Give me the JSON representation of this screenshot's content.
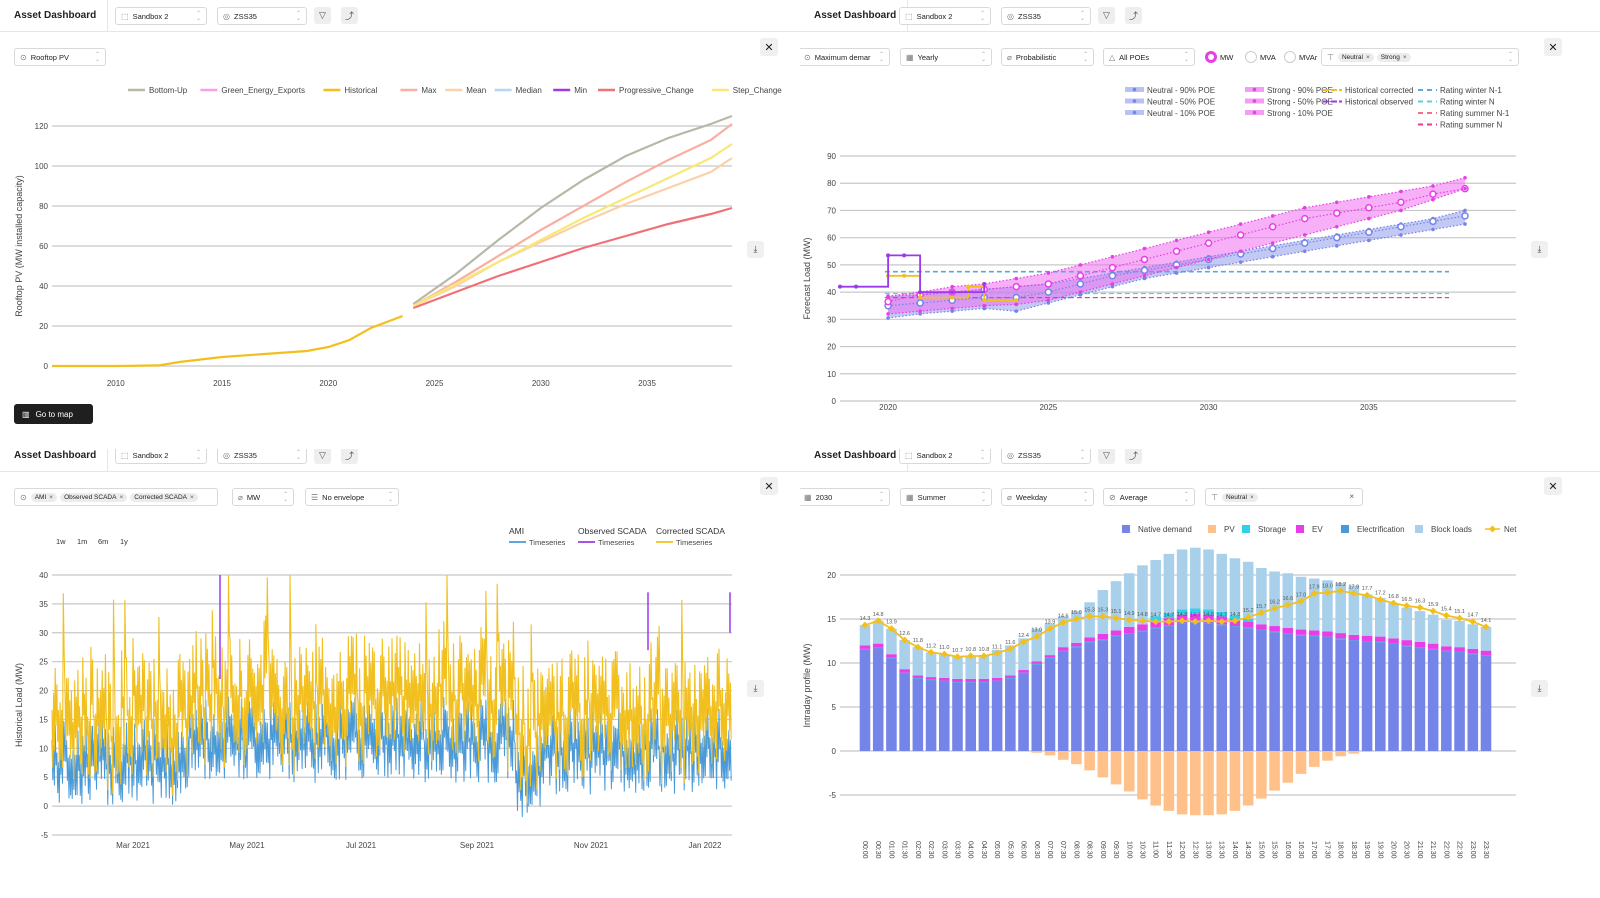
{
  "app_title": "Asset Dashboard",
  "header": {
    "workspace": "Sandbox 2",
    "asset": "ZSS35",
    "filter_icon": "filter-icon",
    "compare_icon": "chart-compare-icon"
  },
  "panel1": {
    "metric_select": "Rooftop PV",
    "go_to_map": "Go to map",
    "close_icon": "close-icon",
    "download_icon": "download-icon"
  },
  "panel2": {
    "controls": {
      "metric": "Maximum demar",
      "period": "Yearly",
      "mode": "Probabilistic",
      "poe": "All POEs",
      "units": [
        {
          "label": "MW",
          "selected": true
        },
        {
          "label": "MVA",
          "selected": false
        },
        {
          "label": "MVAr",
          "selected": false
        }
      ],
      "scenarios": [
        "Neutral",
        "Strong"
      ]
    }
  },
  "panel3": {
    "controls": {
      "sources": [
        "AMI",
        "Observed SCADA",
        "Corrected SCADA"
      ],
      "units": "MW",
      "envelope": "No envelope"
    },
    "ranges": [
      "1w",
      "1m",
      "6m",
      "1y"
    ]
  },
  "panel4": {
    "controls": {
      "year": "2030",
      "season": "Summer",
      "daytype": "Weekday",
      "stat": "Average",
      "scenarios": [
        "Neutral"
      ]
    }
  },
  "colors": {
    "historical": "#f2c01e",
    "accent_magenta": "#e83ee8",
    "native_demand": "#7584e8",
    "pv": "#ffc08a",
    "block_loads": "#a8d0ea"
  },
  "chart_data": [
    {
      "type": "line",
      "title": "Rooftop PV",
      "xlabel": "",
      "ylabel": "Rooftop PV (MW installed capacity)",
      "xlim": [
        2007,
        2039
      ],
      "ylim": [
        0,
        125
      ],
      "yticks": [
        0,
        20,
        40,
        60,
        80,
        100,
        120
      ],
      "xticks": [
        2010,
        2015,
        2020,
        2025,
        2030,
        2035
      ],
      "legend": "top",
      "grid": true,
      "series": [
        {
          "name": "Bottom-Up",
          "color": "#b8b8a8",
          "x": [
            2024,
            2026,
            2028,
            2030,
            2032,
            2034,
            2036,
            2038,
            2039
          ],
          "y": [
            31,
            46,
            63,
            79,
            93,
            105,
            114,
            121,
            125
          ]
        },
        {
          "name": "Green_Energy_Exports",
          "color": "#f7a0e8",
          "x": [],
          "y": []
        },
        {
          "name": "Historical",
          "color": "#f2c01e",
          "x": [
            2007,
            2010,
            2012,
            2013,
            2015,
            2017,
            2019,
            2020,
            2021,
            2022,
            2023,
            2023.5
          ],
          "y": [
            0,
            0,
            0.3,
            2,
            4.5,
            6,
            7.5,
            9.5,
            13,
            19,
            23,
            25
          ]
        },
        {
          "name": "Max",
          "color": "#f9b0a0",
          "x": [
            2024,
            2026,
            2028,
            2030,
            2032,
            2034,
            2036,
            2038,
            2039
          ],
          "y": [
            30,
            42,
            55,
            68,
            80,
            92,
            103,
            113,
            121
          ]
        },
        {
          "name": "Mean",
          "color": "#fcd0a8",
          "x": [
            2024,
            2026,
            2028,
            2030,
            2032,
            2034,
            2036,
            2038,
            2039
          ],
          "y": [
            30,
            40,
            52,
            62,
            72,
            81,
            89,
            97,
            104
          ]
        },
        {
          "name": "Median",
          "color": "#b9d4f5",
          "x": [],
          "y": []
        },
        {
          "name": "Min",
          "color": "#9b3ae8",
          "x": [],
          "y": []
        },
        {
          "name": "Progressive_Change",
          "color": "#f07078",
          "x": [
            2024,
            2026,
            2028,
            2030,
            2032,
            2034,
            2036,
            2038,
            2039
          ],
          "y": [
            29,
            37,
            45,
            52,
            59,
            65,
            71,
            76,
            79
          ]
        },
        {
          "name": "Step_Change",
          "color": "#f8e878",
          "x": [
            2024,
            2026,
            2028,
            2030,
            2032,
            2034,
            2036,
            2038,
            2039
          ],
          "y": [
            30,
            41,
            52,
            63,
            74,
            84,
            94,
            104,
            111
          ]
        }
      ]
    },
    {
      "type": "line",
      "title": "Maximum demand",
      "xlabel": "",
      "ylabel": "Forecast Load (MW)",
      "xlim": [
        2018.5,
        2039
      ],
      "ylim": [
        0,
        95
      ],
      "yticks": [
        0,
        10,
        20,
        30,
        40,
        50,
        60,
        70,
        80,
        90
      ],
      "xticks": [
        2020,
        2025,
        2030,
        2035
      ],
      "legend": "top-right",
      "grid": true,
      "x": [
        2020,
        2021,
        2022,
        2023,
        2024,
        2025,
        2026,
        2027,
        2028,
        2029,
        2030,
        2031,
        2032,
        2033,
        2034,
        2035,
        2036,
        2037,
        2038
      ],
      "series": [
        {
          "name": "Neutral - 90% POE",
          "color": "#7584e8",
          "y": [
            38.5,
            39,
            40,
            41,
            42,
            43,
            45,
            47,
            49,
            51,
            53,
            55,
            57,
            59,
            61,
            63,
            65,
            67,
            70
          ]
        },
        {
          "name": "Neutral - 50% POE",
          "color": "#7584e8",
          "y": [
            35,
            36,
            37,
            38,
            38,
            40,
            43,
            46,
            48,
            50,
            52,
            54,
            56,
            58,
            60,
            62,
            64,
            66,
            68
          ]
        },
        {
          "name": "Neutral - 10% POE",
          "color": "#7584e8",
          "y": [
            30.5,
            32,
            33,
            34,
            33,
            36,
            39,
            42,
            45,
            47,
            49,
            51,
            53,
            55,
            57,
            59,
            61,
            63,
            65
          ]
        },
        {
          "name": "Strong - 90% POE",
          "color": "#e83ee8",
          "y": [
            38.5,
            40,
            42,
            43,
            45,
            47,
            50,
            53,
            56,
            59,
            62,
            65,
            68,
            71,
            73,
            75,
            77,
            79,
            82
          ]
        },
        {
          "name": "Strong - 50% POE",
          "color": "#e83ee8",
          "y": [
            36.5,
            39,
            40,
            41,
            42,
            43,
            46,
            49,
            52,
            55,
            58,
            61,
            64,
            67,
            69,
            71,
            73,
            76,
            78
          ]
        },
        {
          "name": "Strong - 10% POE",
          "color": "#e83ee8",
          "y": [
            32,
            33,
            34,
            35,
            35.5,
            37,
            40,
            43,
            46,
            49,
            52,
            55,
            58,
            61,
            64,
            67,
            70,
            74,
            78
          ]
        },
        {
          "name": "Historical corrected",
          "color": "#f2c01e",
          "x": [
            2020,
            2020.5,
            2021,
            2022,
            2022.5,
            2023,
            2024
          ],
          "y": [
            46,
            46,
            38,
            38,
            42,
            37,
            37
          ]
        },
        {
          "name": "Historical observed",
          "color": "#9b3ae8",
          "x": [
            2018.5,
            2019,
            2020,
            2020.5,
            2021,
            2022,
            2023
          ],
          "y": [
            42,
            42,
            53.5,
            53.5,
            40,
            40,
            43
          ]
        },
        {
          "name": "Rating winter N-1",
          "color": "#5aa8e0",
          "constant": 47.5
        },
        {
          "name": "Rating winter N",
          "color": "#5ad0e0",
          "constant": 39.5
        },
        {
          "name": "Rating summer N-1",
          "color": "#f07090",
          "constant": 38
        },
        {
          "name": "Rating summer N",
          "color": "#e83e8a",
          "constant": 38
        }
      ]
    },
    {
      "type": "line",
      "title": "Historical Load",
      "xlabel": "",
      "ylabel": "Historical Load (MW)",
      "ylim": [
        -5,
        40
      ],
      "yticks": [
        -5,
        0,
        5,
        10,
        15,
        20,
        25,
        30,
        35,
        40
      ],
      "xticks": [
        "Mar 2021",
        "May 2021",
        "Jul 2021",
        "Sep 2021",
        "Nov 2021",
        "Jan 2022"
      ],
      "legend": "top-right",
      "grid": true,
      "series": [
        {
          "name": "AMI Timeseries",
          "color": "#4a9ad8",
          "typical_range": [
            0,
            20
          ]
        },
        {
          "name": "Observed SCADA Timeseries",
          "color": "#9b3ae8",
          "spikes": [
            40,
            37
          ]
        },
        {
          "name": "Corrected SCADA Timeseries",
          "color": "#f2c01e",
          "typical_range": [
            5,
            36
          ]
        }
      ]
    },
    {
      "type": "bar",
      "title": "Intraday profile",
      "xlabel": "",
      "ylabel": "Intraday profile (MW)",
      "ylim": [
        -8,
        22
      ],
      "yticks": [
        -5,
        0,
        5,
        10,
        15,
        20
      ],
      "legend": "top-right",
      "grid": true,
      "categories": [
        "00:00",
        "00:30",
        "01:00",
        "01:30",
        "02:00",
        "02:30",
        "03:00",
        "03:30",
        "04:00",
        "04:30",
        "05:00",
        "05:30",
        "06:00",
        "06:30",
        "07:00",
        "07:30",
        "08:00",
        "08:30",
        "09:00",
        "09:30",
        "10:00",
        "10:30",
        "11:00",
        "11:30",
        "12:00",
        "12:30",
        "13:00",
        "13:30",
        "14:00",
        "14:30",
        "15:00",
        "15:30",
        "16:00",
        "16:30",
        "17:00",
        "17:30",
        "18:00",
        "18:30",
        "19:00",
        "19:30",
        "20:00",
        "20:30",
        "21:00",
        "21:30",
        "22:00",
        "22:30",
        "23:00",
        "23:30"
      ],
      "series": [
        {
          "name": "Native demand",
          "color": "#7584e8",
          "values": [
            11.5,
            11.7,
            10.5,
            8.8,
            8.2,
            8.0,
            7.9,
            7.8,
            7.8,
            7.8,
            7.9,
            8.2,
            8.8,
            9.8,
            10.5,
            11.3,
            11.8,
            12.3,
            12.6,
            13.0,
            13.3,
            13.6,
            13.9,
            14.2,
            14.5,
            14.6,
            14.5,
            14.3,
            14.1,
            13.9,
            13.7,
            13.5,
            13.3,
            13.1,
            13.0,
            12.9,
            12.7,
            12.5,
            12.4,
            12.3,
            12.1,
            11.9,
            11.7,
            11.5,
            11.3,
            11.2,
            11.0,
            10.8
          ]
        },
        {
          "name": "PV",
          "color": "#ffc08a",
          "values": [
            0,
            0,
            0,
            0,
            0,
            0,
            0,
            0,
            0,
            0,
            0,
            0,
            0,
            -0.2,
            -0.5,
            -1,
            -1.5,
            -2.2,
            -3,
            -3.8,
            -4.6,
            -5.5,
            -6.2,
            -6.8,
            -7.2,
            -7.3,
            -7.3,
            -7.2,
            -6.8,
            -6.2,
            -5.4,
            -4.5,
            -3.6,
            -2.6,
            -1.8,
            -1.1,
            -0.6,
            -0.3,
            -0.1,
            0,
            0,
            0,
            0,
            0,
            0,
            0,
            0,
            0
          ]
        },
        {
          "name": "Storage",
          "color": "#30d0e8",
          "values": [
            0,
            0,
            0,
            0,
            0,
            0,
            0,
            0,
            0,
            0,
            0,
            0,
            0,
            0,
            0,
            0,
            0,
            0,
            0,
            0,
            0,
            0,
            0.5,
            0.6,
            0.6,
            0.6,
            0.6,
            0.5,
            0.4,
            0.3,
            0,
            0,
            0,
            0,
            0,
            0,
            0,
            0,
            0,
            0,
            0,
            0,
            0,
            0,
            0,
            0,
            0,
            0
          ]
        },
        {
          "name": "EV",
          "color": "#e83ee8",
          "values": [
            0.4,
            0.4,
            0.4,
            0.4,
            0.3,
            0.3,
            0.3,
            0.3,
            0.3,
            0.3,
            0.3,
            0.3,
            0.3,
            0.3,
            0.3,
            0.4,
            0.4,
            0.5,
            0.6,
            0.6,
            0.7,
            0.7,
            0.8,
            0.8,
            0.9,
            0.9,
            0.9,
            0.9,
            0.8,
            0.7,
            0.6,
            0.6,
            0.6,
            0.6,
            0.6,
            0.6,
            0.6,
            0.6,
            0.6,
            0.6,
            0.6,
            0.6,
            0.6,
            0.6,
            0.5,
            0.5,
            0.5,
            0.5
          ]
        },
        {
          "name": "Electrification",
          "color": "#4a9ad8",
          "values": [
            0.1,
            0.1,
            0.1,
            0.1,
            0.1,
            0.1,
            0.1,
            0.1,
            0.1,
            0.1,
            0.1,
            0.1,
            0.1,
            0.1,
            0.1,
            0.1,
            0.1,
            0.1,
            0.1,
            0.1,
            0.1,
            0.1,
            0.1,
            0.1,
            0.1,
            0.1,
            0.1,
            0.1,
            0.1,
            0.1,
            0.1,
            0.1,
            0.1,
            0.1,
            0.1,
            0.1,
            0.1,
            0.1,
            0.1,
            0.1,
            0.1,
            0.1,
            0.1,
            0.1,
            0.1,
            0.1,
            0.1,
            0.1
          ]
        },
        {
          "name": "Block loads",
          "color": "#a8d0ea",
          "values": [
            2.3,
            2.6,
            2.9,
            3.3,
            3.2,
            2.8,
            2.7,
            2.6,
            2.6,
            2.7,
            3.2,
            3.4,
            3.6,
            3.7,
            3.6,
            3.5,
            3.6,
            4.0,
            5.0,
            5.6,
            6.1,
            6.7,
            6.4,
            6.7,
            6.8,
            6.9,
            6.8,
            6.6,
            6.5,
            6.5,
            6.4,
            6.2,
            6.2,
            6.0,
            5.9,
            5.8,
            5.7,
            5.6,
            4.7,
            4.4,
            4.0,
            3.7,
            3.5,
            3.3,
            3.0,
            3.0,
            2.8,
            2.7
          ]
        },
        {
          "name": "Net",
          "color": "#f2c01e",
          "type": "line",
          "values": [
            14.3,
            14.8,
            13.9,
            12.6,
            11.8,
            11.2,
            11.0,
            10.7,
            10.8,
            10.8,
            11.1,
            11.6,
            12.4,
            13.0,
            13.9,
            14.6,
            15.0,
            15.3,
            15.3,
            15.1,
            14.9,
            14.8,
            14.7,
            14.7,
            14.8,
            14.7,
            14.8,
            14.7,
            14.8,
            15.2,
            15.7,
            16.2,
            16.6,
            17.0,
            17.9,
            18.0,
            18.2,
            17.9,
            17.7,
            17.2,
            16.8,
            16.5,
            16.3,
            15.9,
            15.4,
            15.1,
            14.7,
            14.1
          ]
        }
      ]
    }
  ]
}
